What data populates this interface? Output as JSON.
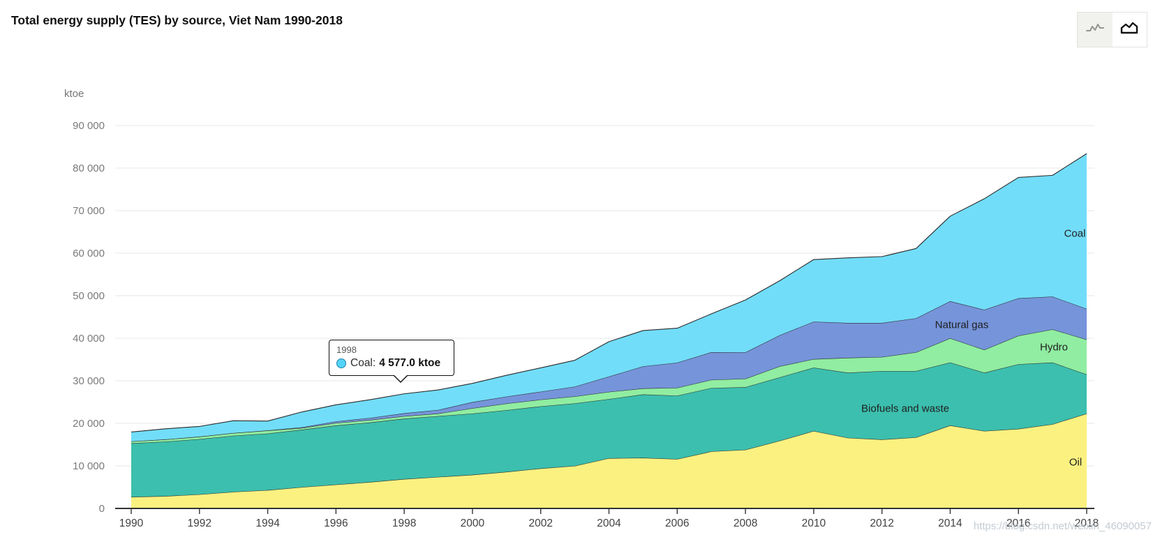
{
  "header": {
    "title": "Total energy supply (TES) by source, Viet Nam 1990-2018"
  },
  "toolbar": {
    "buttons": [
      {
        "label": "line-chart-view",
        "icon": "line-chart-icon",
        "active": false
      },
      {
        "label": "area-chart-view",
        "icon": "area-chart-icon",
        "active": true
      }
    ]
  },
  "axes": {
    "y_unit": "ktoe",
    "y_tick_labels": [
      "0",
      "10 000",
      "20 000",
      "30 000",
      "40 000",
      "50 000",
      "60 000",
      "70 000",
      "80 000",
      "90 000"
    ],
    "x_tick_labels": [
      "1990",
      "1992",
      "1994",
      "1996",
      "1998",
      "2000",
      "2002",
      "2004",
      "2006",
      "2008",
      "2010",
      "2012",
      "2014",
      "2016",
      "2018"
    ]
  },
  "tooltip": {
    "year": "1998",
    "series": "Coal",
    "label": "Coal:",
    "value": "4 577.0 ktoe",
    "marker_color": "#54d3f8"
  },
  "watermark": "https://blog.csdn.net/weixin_46090057",
  "colors": {
    "grid": "#e7e7e7",
    "axis": "#333333",
    "outline": "#2b2b2b",
    "tick_text": "#424242",
    "y_text": "#7a7a7a"
  },
  "chart_data": {
    "type": "area",
    "stacked": true,
    "title": "Total energy supply (TES) by source, Viet Nam 1990-2018",
    "xlabel": "",
    "ylabel": "ktoe",
    "ylim": [
      0,
      90000
    ],
    "grid": true,
    "legend_position": "labels-inside-areas",
    "x": [
      1990,
      1991,
      1992,
      1993,
      1994,
      1995,
      1996,
      1997,
      1998,
      1999,
      2000,
      2001,
      2002,
      2003,
      2004,
      2005,
      2006,
      2007,
      2008,
      2009,
      2010,
      2011,
      2012,
      2013,
      2014,
      2015,
      2016,
      2017,
      2018
    ],
    "series": [
      {
        "name": "Oil",
        "color": "#FAF180",
        "values": [
          2700,
          2900,
          3300,
          3900,
          4300,
          5000,
          5600,
          6200,
          6900,
          7400,
          7900,
          8600,
          9400,
          10000,
          11800,
          11900,
          11600,
          13400,
          13800,
          15900,
          18200,
          16600,
          16200,
          16700,
          19500,
          18200,
          18700,
          19800,
          22300
        ]
      },
      {
        "name": "Biofuels and waste",
        "color": "#3CBFAE",
        "values": [
          12600,
          12800,
          13000,
          13200,
          13300,
          13500,
          13900,
          14000,
          14200,
          14300,
          14400,
          14500,
          14600,
          14700,
          13900,
          14900,
          14900,
          14900,
          14700,
          14900,
          14900,
          15300,
          16100,
          15600,
          14800,
          13700,
          15200,
          14500,
          9200
        ]
      },
      {
        "name": "Hydro",
        "color": "#90EDA1",
        "values": [
          460,
          510,
          570,
          620,
          700,
          410,
          590,
          590,
          580,
          610,
          1250,
          1550,
          1580,
          1640,
          1700,
          1410,
          1860,
          1930,
          2000,
          2600,
          2000,
          3500,
          3300,
          4400,
          5700,
          5400,
          6700,
          7800,
          8200
        ]
      },
      {
        "name": "Natural gas",
        "color": "#7694DA",
        "values": [
          0,
          10,
          10,
          10,
          40,
          170,
          360,
          480,
          690,
          850,
          1440,
          1650,
          1860,
          2290,
          3600,
          5200,
          5900,
          6500,
          6200,
          7300,
          8800,
          8200,
          8000,
          8000,
          8700,
          9400,
          8800,
          7700,
          7200
        ]
      },
      {
        "name": "Coal",
        "color": "#72DDF9",
        "values": [
          2200,
          2500,
          2400,
          2900,
          2200,
          3600,
          3900,
          4300,
          4577,
          4700,
          4400,
          5000,
          5600,
          6200,
          8200,
          8400,
          8100,
          9000,
          12300,
          12800,
          14600,
          15300,
          15600,
          16400,
          20000,
          26100,
          28400,
          28500,
          36500
        ]
      }
    ]
  }
}
